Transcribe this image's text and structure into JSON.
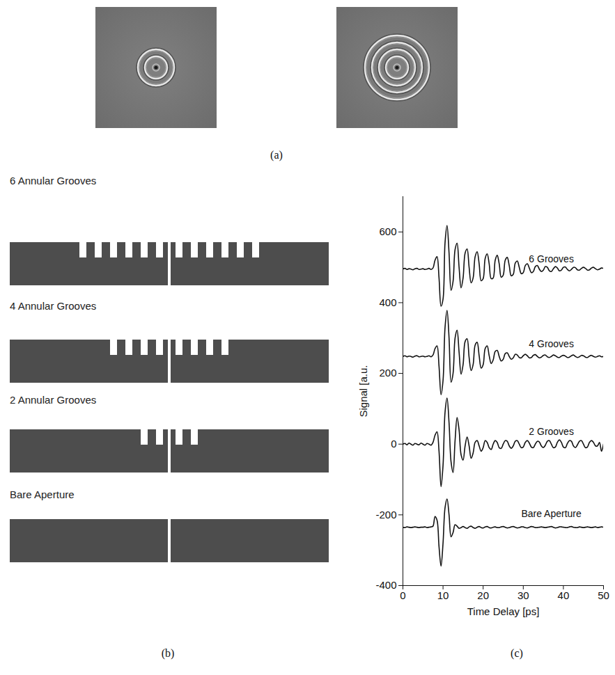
{
  "panel_a": {
    "label": "(a)",
    "images": [
      {
        "grooves": 2
      },
      {
        "grooves": 4
      }
    ]
  },
  "panel_b": {
    "label": "(b)",
    "diagrams": [
      {
        "title": "6 Annular Grooves",
        "grooves": 6
      },
      {
        "title": "4 Annular Grooves",
        "grooves": 4
      },
      {
        "title": "2 Annular Grooves",
        "grooves": 2
      },
      {
        "title": "Bare Aperture",
        "grooves": 0
      }
    ]
  },
  "chart_data": {
    "type": "line",
    "label": "(c)",
    "xlabel": "Time Delay [ps]",
    "ylabel": "Signal [a.u.",
    "xlim": [
      0,
      50
    ],
    "xticks": [
      0,
      10,
      20,
      30,
      40,
      50
    ],
    "ylim": [
      -400,
      700
    ],
    "yticks": [
      -400,
      -200,
      0,
      200,
      400,
      600
    ],
    "grid": false,
    "x": [
      0,
      0.5,
      1,
      1.5,
      2,
      2.5,
      3,
      3.5,
      4,
      4.5,
      5,
      5.5,
      6,
      6.5,
      7,
      7.5,
      8,
      8.5,
      9,
      9.5,
      10,
      10.5,
      11,
      11.5,
      12,
      12.5,
      13,
      13.5,
      14,
      14.5,
      15,
      15.5,
      16,
      16.5,
      17,
      17.5,
      18,
      18.5,
      19,
      19.5,
      20,
      20.5,
      21,
      21.5,
      22,
      22.5,
      23,
      23.5,
      24,
      24.5,
      25,
      25.5,
      26,
      26.5,
      27,
      27.5,
      28,
      28.5,
      29,
      29.5,
      30,
      30.5,
      31,
      31.5,
      32,
      32.5,
      33,
      33.5,
      34,
      34.5,
      35,
      35.5,
      36,
      36.5,
      37,
      37.5,
      38,
      38.5,
      39,
      39.5,
      40,
      40.5,
      41,
      41.5,
      42,
      42.5,
      43,
      43.5,
      44,
      44.5,
      45,
      45.5,
      46,
      46.5,
      47,
      47.5,
      48,
      48.5,
      49,
      49.5,
      50
    ],
    "series": [
      {
        "name": "6 Grooves",
        "color": "#111111",
        "values": [
          495,
          497,
          494,
          496,
          495,
          493,
          496,
          497,
          494,
          495,
          496,
          494,
          495,
          497,
          494,
          498,
          520,
          530,
          470,
          390,
          410,
          570,
          618,
          540,
          435,
          460,
          550,
          568,
          500,
          442,
          470,
          540,
          552,
          500,
          456,
          470,
          530,
          544,
          510,
          462,
          468,
          525,
          538,
          510,
          468,
          470,
          520,
          534,
          510,
          472,
          478,
          520,
          528,
          505,
          476,
          480,
          512,
          518,
          500,
          482,
          485,
          505,
          510,
          498,
          485,
          488,
          502,
          505,
          495,
          488,
          492,
          502,
          500,
          490,
          488,
          496,
          502,
          498,
          490,
          492,
          500,
          501,
          494,
          490,
          494,
          500,
          499,
          493,
          492,
          497,
          500,
          497,
          492,
          493,
          498,
          500,
          496,
          493,
          495,
          498,
          497
        ]
      },
      {
        "name": "4 Grooves",
        "color": "#111111",
        "values": [
          248,
          250,
          247,
          249,
          248,
          246,
          249,
          250,
          247,
          248,
          249,
          247,
          248,
          250,
          247,
          252,
          270,
          278,
          220,
          140,
          180,
          330,
          378,
          300,
          175,
          200,
          300,
          322,
          260,
          198,
          225,
          290,
          298,
          245,
          208,
          225,
          280,
          288,
          250,
          215,
          225,
          270,
          278,
          250,
          228,
          238,
          262,
          265,
          248,
          235,
          240,
          256,
          258,
          248,
          240,
          244,
          254,
          252,
          245,
          244,
          250,
          254,
          250,
          244,
          245,
          251,
          253,
          248,
          244,
          246,
          251,
          252,
          247,
          245,
          248,
          252,
          250,
          246,
          245,
          249,
          251,
          249,
          245,
          246,
          250,
          252,
          248,
          245,
          247,
          251,
          250,
          246,
          245,
          249,
          251,
          248,
          246,
          248,
          250,
          247,
          248
        ]
      },
      {
        "name": "2 Grooves",
        "color": "#111111",
        "values": [
          0,
          2,
          -2,
          3,
          0,
          -3,
          2,
          0,
          -2,
          3,
          0,
          -3,
          2,
          0,
          -3,
          5,
          25,
          35,
          -20,
          -120,
          -60,
          90,
          130,
          60,
          -50,
          -80,
          10,
          75,
          40,
          -30,
          -45,
          -5,
          20,
          -5,
          -40,
          -25,
          5,
          10,
          -5,
          -20,
          -10,
          10,
          5,
          -10,
          -15,
          0,
          10,
          5,
          -10,
          -12,
          0,
          10,
          8,
          -5,
          -12,
          -5,
          8,
          10,
          0,
          -10,
          -8,
          5,
          10,
          3,
          -8,
          -10,
          0,
          8,
          6,
          -5,
          -10,
          -3,
          8,
          10,
          0,
          -10,
          -8,
          5,
          12,
          5,
          -8,
          -10,
          2,
          10,
          8,
          -5,
          -10,
          -2,
          8,
          10,
          0,
          -10,
          -8,
          5,
          10,
          5,
          -5,
          -5,
          5,
          -20,
          0
        ]
      },
      {
        "name": "Bare Aperture",
        "color": "#111111",
        "values": [
          -235,
          -236,
          -234,
          -235,
          -236,
          -235,
          -234,
          -235,
          -236,
          -235,
          -235,
          -234,
          -236,
          -235,
          -234,
          -232,
          -205,
          -215,
          -290,
          -345,
          -280,
          -180,
          -155,
          -200,
          -262,
          -250,
          -228,
          -232,
          -238,
          -236,
          -233,
          -236,
          -238,
          -234,
          -232,
          -236,
          -238,
          -235,
          -233,
          -236,
          -237,
          -234,
          -233,
          -236,
          -237,
          -235,
          -234,
          -236,
          -236,
          -234,
          -233,
          -235,
          -237,
          -236,
          -234,
          -233,
          -235,
          -237,
          -236,
          -234,
          -234,
          -236,
          -237,
          -235,
          -233,
          -234,
          -236,
          -236,
          -235,
          -234,
          -235,
          -236,
          -235,
          -234,
          -233,
          -235,
          -237,
          -236,
          -234,
          -234,
          -235,
          -236,
          -236,
          -234,
          -233,
          -235,
          -236,
          -236,
          -234,
          -235,
          -236,
          -235,
          -234,
          -235,
          -236,
          -235,
          -234,
          -236,
          -235,
          -234,
          -235
        ]
      }
    ]
  }
}
